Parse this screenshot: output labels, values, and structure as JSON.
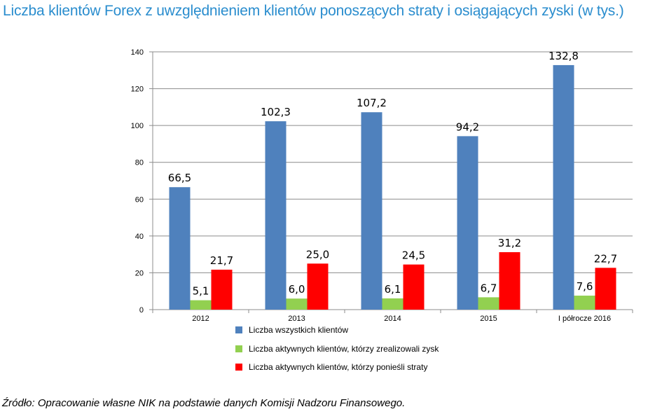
{
  "title": "Liczba klientów Forex z uwzględnieniem klientów ponoszących straty i osiągających zyski (w tys.)",
  "source": "Źródło: Opracowanie własne NIK na podstawie danych Komisji Nadzoru Finansowego.",
  "chart_data": {
    "type": "bar",
    "title": "Liczba klientów Forex z uwzględnieniem klientów ponoszących straty i osiągających zyski (w tys.)",
    "categories": [
      "2012",
      "2013",
      "2014",
      "2015",
      "I półrocze 2016"
    ],
    "series": [
      {
        "name": "Liczba wszystkich klientów",
        "color": "#4f81bd",
        "values": [
          66.5,
          102.3,
          107.2,
          94.2,
          132.8
        ],
        "labels": [
          "66,5",
          "102,3",
          "107,2",
          "94,2",
          "132,8"
        ]
      },
      {
        "name": "Liczba aktywnych klientów, którzy zrealizowali zysk",
        "color": "#92d050",
        "values": [
          5.1,
          6.0,
          6.1,
          6.7,
          7.6
        ],
        "labels": [
          "5,1",
          "6,0",
          "6,1",
          "6,7",
          "7,6"
        ]
      },
      {
        "name": "Liczba aktywnych klientów, którzy ponieśli straty",
        "color": "#ff0000",
        "values": [
          21.7,
          25.0,
          24.5,
          31.2,
          22.7
        ],
        "labels": [
          "21,7",
          "25,0",
          "24,5",
          "31,2",
          "22,7"
        ]
      }
    ],
    "ylim": [
      0,
      140
    ],
    "yticks": [
      0,
      20,
      40,
      60,
      80,
      100,
      120,
      140
    ],
    "grid": true,
    "legend_position": "bottom"
  }
}
